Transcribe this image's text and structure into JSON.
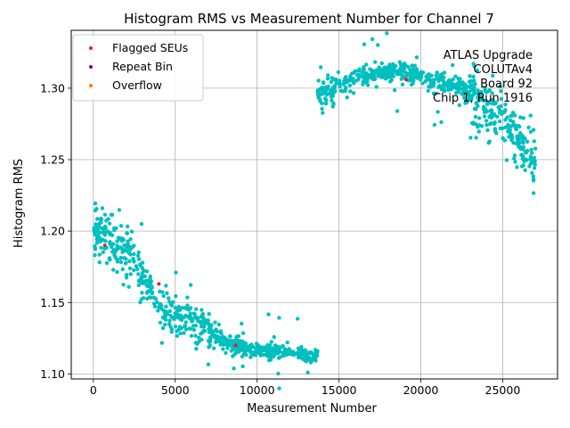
{
  "chart_data": {
    "type": "scatter",
    "title": "Histogram RMS vs Measurement Number for Channel 7",
    "xlabel": "Measurement Number",
    "ylabel": "Histogram RMS",
    "xlim": [
      -1350,
      28350
    ],
    "ylim": [
      1.0965,
      1.3405
    ],
    "xticks": [
      0,
      5000,
      10000,
      15000,
      20000,
      25000
    ],
    "xtick_labels": [
      "0",
      "5000",
      "10000",
      "15000",
      "20000",
      "25000"
    ],
    "yticks": [
      1.1,
      1.15,
      1.2,
      1.25,
      1.3
    ],
    "ytick_labels": [
      "1.10",
      "1.15",
      "1.20",
      "1.25",
      "1.30"
    ],
    "grid": true,
    "legend_position": "top-left",
    "colors": {
      "main": "#00bfbf",
      "flagged": "#d62728",
      "repeat": "#800080",
      "overflow": "#ff7f0e"
    },
    "trend": {
      "description": "main series trend points, [measurement, rms]",
      "points": [
        [
          0,
          1.2
        ],
        [
          1000,
          1.197
        ],
        [
          2000,
          1.185
        ],
        [
          3000,
          1.165
        ],
        [
          4000,
          1.148
        ],
        [
          5000,
          1.14
        ],
        [
          6000,
          1.137
        ],
        [
          7000,
          1.13
        ],
        [
          8000,
          1.122
        ],
        [
          9000,
          1.118
        ],
        [
          10000,
          1.116
        ],
        [
          11000,
          1.116
        ],
        [
          12000,
          1.115
        ],
        [
          13000,
          1.113
        ],
        [
          13700,
          1.113
        ],
        [
          13701,
          1.296
        ],
        [
          14500,
          1.298
        ],
        [
          15500,
          1.304
        ],
        [
          16500,
          1.309
        ],
        [
          17500,
          1.311
        ],
        [
          18500,
          1.312
        ],
        [
          19500,
          1.31
        ],
        [
          20500,
          1.306
        ],
        [
          21500,
          1.303
        ],
        [
          22500,
          1.3
        ],
        [
          23500,
          1.29
        ],
        [
          24500,
          1.28
        ],
        [
          25500,
          1.27
        ],
        [
          26500,
          1.255
        ],
        [
          27000,
          1.245
        ]
      ],
      "n_points": 1350
    },
    "series": [
      {
        "name": "Flagged SEUs",
        "color": "#d62728",
        "points": [
          [
            700,
            1.19
          ],
          [
            4000,
            1.163
          ],
          [
            8700,
            1.12
          ],
          [
            19100,
            1.306
          ]
        ]
      },
      {
        "name": "Repeat Bin",
        "color": "#800080",
        "points": []
      },
      {
        "name": "Overflow",
        "color": "#ff7f0e",
        "points": []
      }
    ],
    "annotation_lines": [
      "ATLAS Upgrade",
      "COLUTAv4",
      "Board 92",
      "Chip 1, Run 1916"
    ]
  }
}
